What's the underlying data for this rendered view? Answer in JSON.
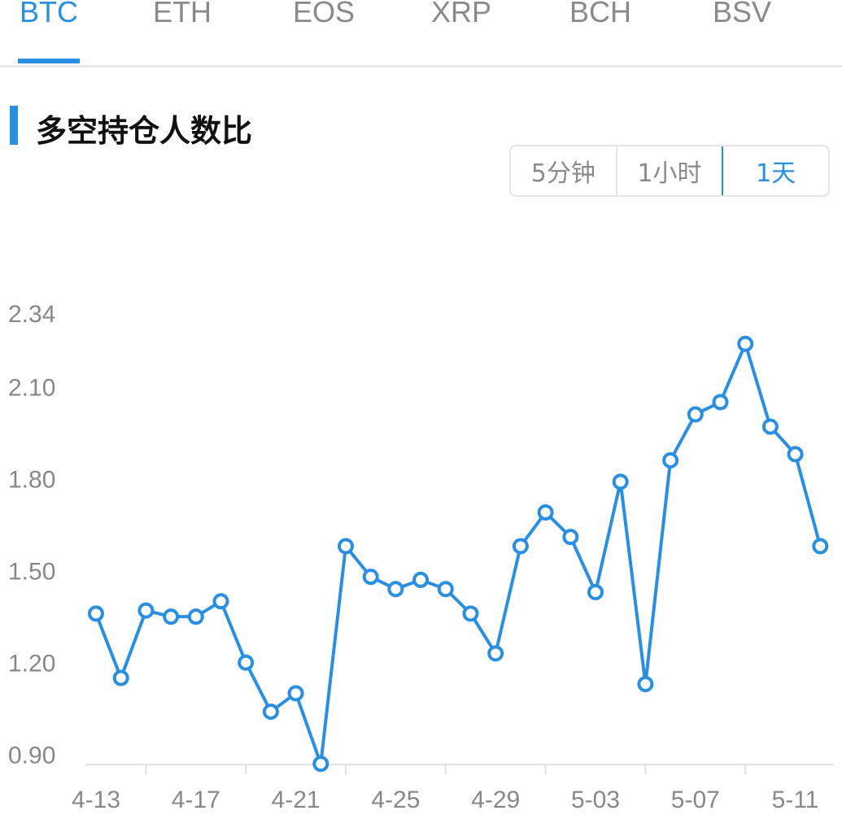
{
  "tabs": [
    {
      "label": "BTC",
      "active": true
    },
    {
      "label": "ETH",
      "active": false
    },
    {
      "label": "EOS",
      "active": false
    },
    {
      "label": "XRP",
      "active": false
    },
    {
      "label": "BCH",
      "active": false
    },
    {
      "label": "BSV",
      "active": false
    }
  ],
  "section": {
    "title": "多空持仓人数比"
  },
  "intervals": [
    {
      "label": "5分钟",
      "active": false
    },
    {
      "label": "1小时",
      "active": false
    },
    {
      "label": "1天",
      "active": true
    }
  ],
  "colors": {
    "accent": "#2a8fe0",
    "line": "#2a8fe0",
    "axis": "#e0e0e0",
    "tick_text": "#888888"
  },
  "chart_data": {
    "type": "line",
    "title": "",
    "xlabel": "",
    "ylabel": "",
    "x": [
      "4-13",
      "4-14",
      "4-15",
      "4-16",
      "4-17",
      "4-18",
      "4-19",
      "4-20",
      "4-21",
      "4-22",
      "4-23",
      "4-24",
      "4-25",
      "4-26",
      "4-27",
      "4-28",
      "4-29",
      "4-30",
      "5-01",
      "5-02",
      "5-03",
      "5-04",
      "5-05",
      "5-06",
      "5-07",
      "5-08",
      "5-09",
      "5-10",
      "5-11",
      "5-12"
    ],
    "values": [
      1.36,
      1.15,
      1.37,
      1.35,
      1.35,
      1.4,
      1.2,
      1.04,
      1.1,
      0.87,
      1.58,
      1.48,
      1.44,
      1.47,
      1.44,
      1.36,
      1.23,
      1.58,
      1.69,
      1.61,
      1.43,
      1.79,
      1.13,
      1.86,
      2.01,
      2.05,
      2.24,
      1.97,
      1.88,
      1.58
    ],
    "x_tick_labels": [
      "4-13",
      "4-17",
      "4-21",
      "4-25",
      "4-29",
      "5-03",
      "5-07",
      "5-11"
    ],
    "y_ticks": [
      "0.90",
      "1.20",
      "1.50",
      "1.80",
      "2.10",
      "2.34"
    ],
    "ylim": [
      0.87,
      2.4
    ],
    "grid": false,
    "markers": "hollow-circle"
  }
}
